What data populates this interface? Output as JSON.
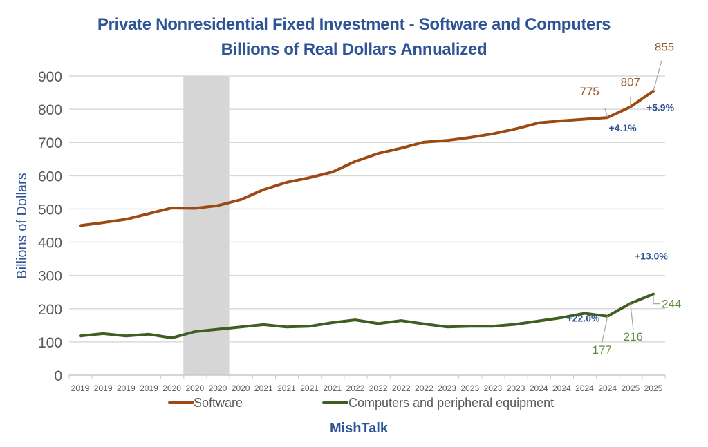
{
  "chart_data": {
    "type": "line",
    "title": "Private Nonresidential Fixed Investment - Software and Computers",
    "subtitle": "Billions of Real Dollars Annualized",
    "xlabel": "",
    "ylabel": "Billions of Dollars",
    "ylim": [
      0,
      900
    ],
    "yticks": [
      0,
      100,
      200,
      300,
      400,
      500,
      600,
      700,
      800,
      900
    ],
    "grid": true,
    "legend_position": "bottom",
    "footer": "MishTalk",
    "categories": [
      "2019",
      "2019",
      "2019",
      "2019",
      "2020",
      "2020",
      "2020",
      "2020",
      "2021",
      "2021",
      "2021",
      "2021",
      "2022",
      "2022",
      "2022",
      "2022",
      "2023",
      "2023",
      "2023",
      "2023",
      "2024",
      "2024",
      "2024",
      "2024",
      "2025",
      "2025"
    ],
    "recession_shading": {
      "from_index": 4.5,
      "to_index": 6.5
    },
    "series": [
      {
        "name": "Software",
        "color": "#9c4a13",
        "label_color": "#9c5a2a",
        "values": [
          450,
          459,
          469,
          486,
          503,
          502,
          510,
          528,
          558,
          580,
          594,
          611,
          643,
          667,
          683,
          701,
          706,
          715,
          726,
          741,
          759,
          765,
          770,
          775,
          807,
          855
        ]
      },
      {
        "name": "Computers and peripheral equipment",
        "color": "#3e5e22",
        "label_color": "#5a8a3a",
        "values": [
          118,
          125,
          118,
          123,
          112,
          131,
          138,
          145,
          152,
          145,
          147,
          158,
          166,
          155,
          164,
          154,
          145,
          147,
          147,
          153,
          163,
          173,
          186,
          177,
          216,
          244
        ]
      }
    ],
    "annotations": {
      "value_labels": [
        {
          "series": 0,
          "index": 23,
          "text": "775"
        },
        {
          "series": 0,
          "index": 24,
          "text": "807"
        },
        {
          "series": 0,
          "index": 25,
          "text": "855"
        },
        {
          "series": 1,
          "index": 23,
          "text": "177"
        },
        {
          "series": 1,
          "index": 24,
          "text": "216"
        },
        {
          "series": 1,
          "index": 25,
          "text": "244"
        }
      ],
      "pct_labels": [
        {
          "series": 0,
          "text": "+4.1%"
        },
        {
          "series": 0,
          "text": "+5.9%"
        },
        {
          "series": 1,
          "text": "+22.0%"
        },
        {
          "series": 1,
          "text": "+13.0%"
        }
      ]
    }
  }
}
